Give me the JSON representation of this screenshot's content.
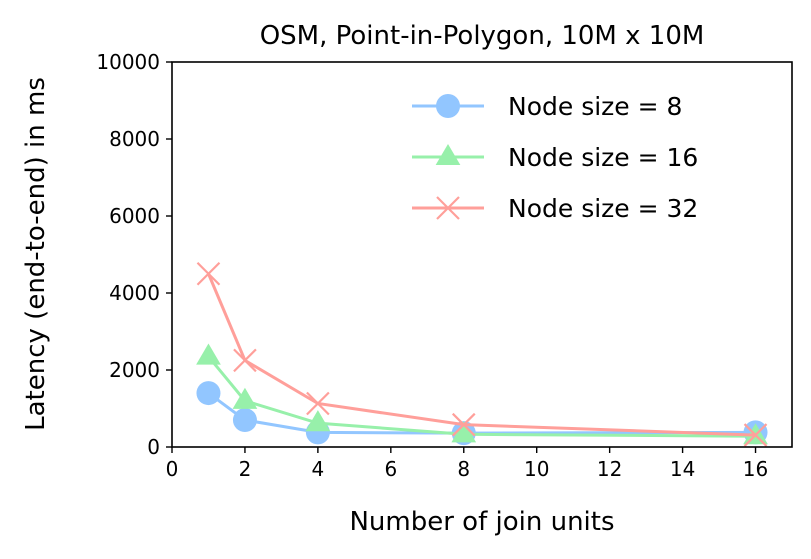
{
  "chart_data": {
    "type": "line",
    "title": "OSM, Point-in-Polygon, 10M x 10M",
    "xlabel": "Number of join units",
    "ylabel": "Latency (end-to-end) in ms",
    "xlim": [
      0,
      17
    ],
    "ylim": [
      0,
      10000
    ],
    "xticks": [
      0,
      2,
      4,
      6,
      8,
      10,
      12,
      14,
      16
    ],
    "yticks": [
      0,
      2000,
      4000,
      6000,
      8000,
      10000
    ],
    "grid": false,
    "legend_position": "top-right",
    "x": [
      1,
      2,
      4,
      8,
      16
    ],
    "series": [
      {
        "name": "Node size = 8",
        "values": [
          1400,
          700,
          380,
          360,
          380
        ],
        "color": "#92c6ff",
        "marker": "circle"
      },
      {
        "name": "Node size = 16",
        "values": [
          2350,
          1200,
          620,
          330,
          280
        ],
        "color": "#97f0aa",
        "marker": "triangle"
      },
      {
        "name": "Node size = 32",
        "values": [
          4500,
          2250,
          1130,
          580,
          310
        ],
        "color": "#ff9f9a",
        "marker": "x"
      }
    ]
  }
}
